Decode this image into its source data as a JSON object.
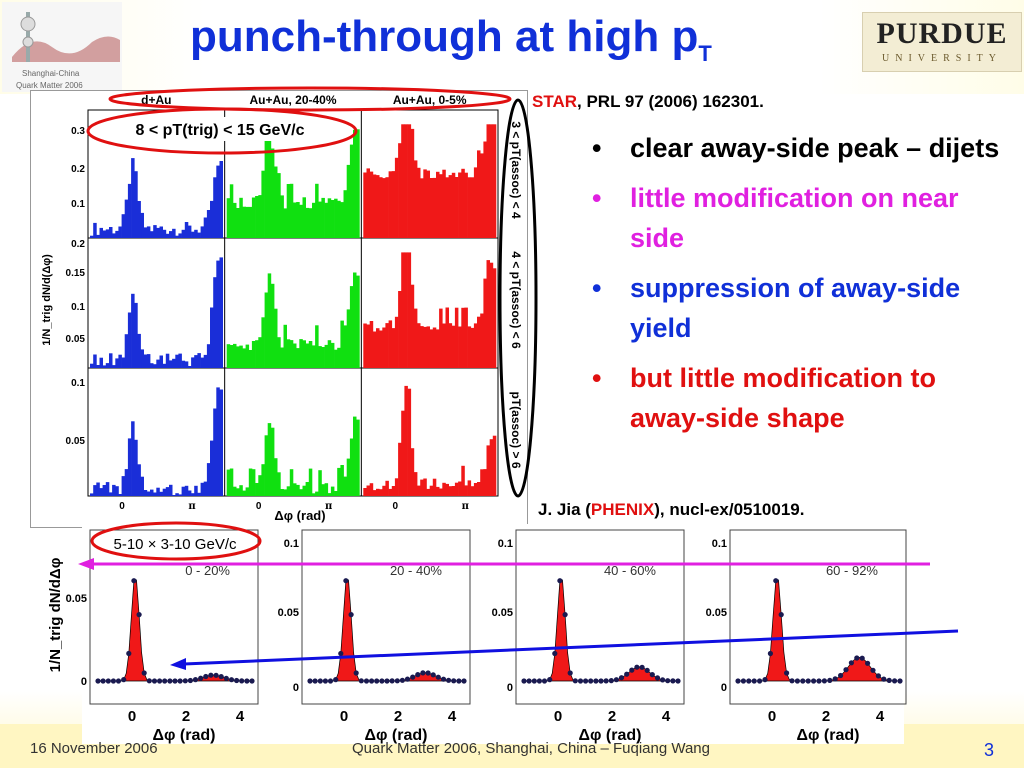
{
  "slide": {
    "title_main": "punch-through at high p",
    "title_sub": "T",
    "logo_right_main": "PURDUE",
    "logo_right_sub": "UNIVERSITY",
    "logo_left_text1": "Shanghai-China",
    "logo_left_text2": "Quark Matter 2006",
    "ref_star_name": "STAR",
    "ref_star_rest": ", PRL 97 (2006) 162301.",
    "ref_phenix_pre": "J. Jia (",
    "ref_phenix_name": "PHENIX",
    "ref_phenix_post": "), nucl-ex/0510019.",
    "footer_date": "16 November 2006",
    "footer_center": "Quark Matter 2006, Shanghai, China – Fuqiang Wang",
    "page_number": "3"
  },
  "bullets": [
    {
      "text": "clear away-side peak – dijets",
      "color": "#000000"
    },
    {
      "text": "little modification on near side",
      "color": "#e020e0"
    },
    {
      "text": "suppression of away-side yield",
      "color": "#1030d8"
    },
    {
      "text": "but little modification to away-side shape",
      "color": "#e01010"
    }
  ],
  "star_figure": {
    "col_labels": [
      "d+Au",
      "Au+Au, 20-40%",
      "Au+Au, 0-5%"
    ],
    "trig_label": "8 < pT(trig) < 15 GeV/c",
    "row_labels": [
      "3 < pT(assoc) < 4",
      "4 < pT(assoc) < 6",
      "pT(assoc) > 6"
    ],
    "y_ticks_rows": [
      [
        "0.3",
        "0.2",
        "0.1"
      ],
      [
        "0.2",
        "0.15",
        "0.1",
        "0.05"
      ],
      [
        "0.1",
        "0.05"
      ]
    ],
    "x_ticks": [
      "0",
      "π"
    ],
    "x_label": "Δφ (rad)",
    "y_label": "1/N_trig dN/d(Δφ)"
  },
  "phenix_figure": {
    "bin_label": "5-10 × 3-10 GeV/c",
    "centralities": [
      "0 - 20%",
      "20 - 40%",
      "40 - 60%",
      "60 - 92%"
    ],
    "y_ticks_first": [
      "0.05",
      "0"
    ],
    "y_ticks_other": [
      "0.1",
      "0.05",
      "0"
    ],
    "x_ticks": [
      "0",
      "2",
      "4"
    ],
    "x_label": "Δφ (rad)",
    "y_label": "1/N_trig dN/dΔφ"
  },
  "colors": {
    "title": "#1030d8",
    "dAu": "#1a2ed8",
    "AuAu_mid": "#10e010",
    "AuAu_central": "#f01818",
    "annotation_red": "#e01010",
    "annotation_magenta": "#e020e0",
    "annotation_blue": "#1010e0"
  }
}
